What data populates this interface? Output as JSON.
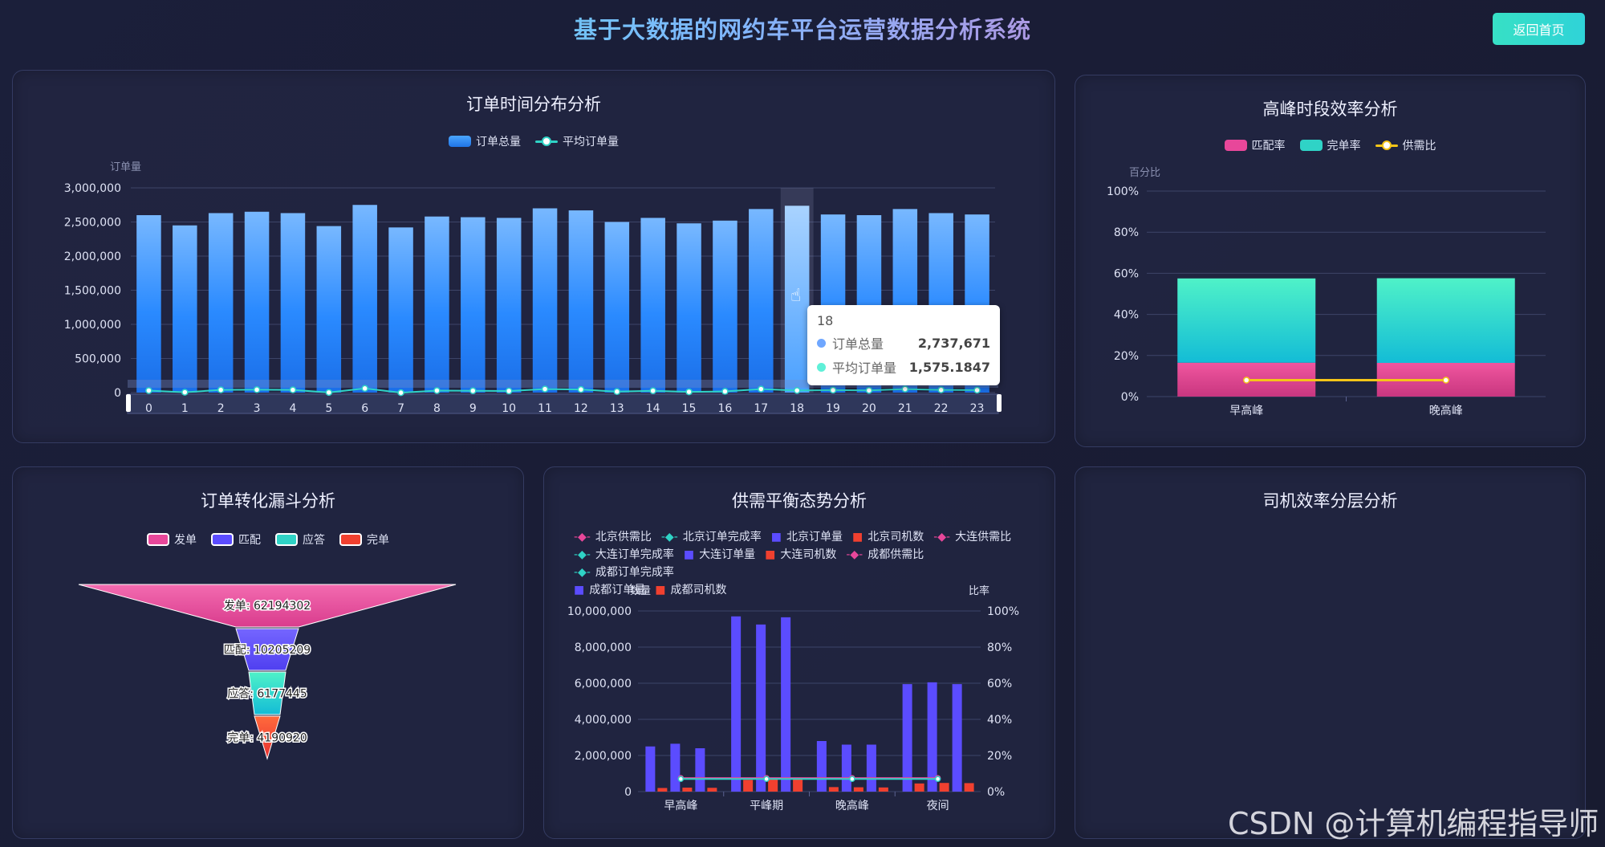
{
  "header": {
    "title": "基于大数据的网约车平台运营数据分析系统",
    "back_label": "返回首页"
  },
  "panels": {
    "time_dist": {
      "title": "订单时间分布分析",
      "legend": [
        "订单总量",
        "平均订单量"
      ],
      "ylabel": "订单量",
      "tooltip": {
        "hour": "18",
        "total_label": "订单总量",
        "total_value": "2,737,671",
        "avg_label": "平均订单量",
        "avg_value": "1,575.1847"
      }
    },
    "peak": {
      "title": "高峰时段效率分析",
      "legend": [
        "匹配率",
        "完单率",
        "供需比"
      ],
      "ylabel": "百分比"
    },
    "funnel": {
      "title": "订单转化漏斗分析",
      "legend": [
        "发单",
        "匹配",
        "应答",
        "完单"
      ],
      "labels": [
        "发单: 62194302",
        "匹配: 10205209",
        "应答: 6177445",
        "完单: 4190920"
      ]
    },
    "supply": {
      "title": "供需平衡态势分析",
      "legend": [
        "北京供需比",
        "北京订单完成率",
        "北京订单量",
        "北京司机数",
        "大连供需比",
        "大连订单完成率",
        "大连订单量",
        "大连司机数",
        "成都供需比",
        "成都订单完成率",
        "成都订单量",
        "成都司机数"
      ],
      "ylabel_left": "数量",
      "ylabel_right": "比率"
    },
    "driver": {
      "title": "司机效率分层分析"
    }
  },
  "watermark": "CSDN @计算机编程指导师",
  "colors": {
    "blue": "#2f8cff",
    "pink": "#e8479a",
    "teal": "#2fd3c6",
    "purple": "#5b4cff",
    "red": "#f0402f",
    "yellow": "#f5c518"
  },
  "chart_data": [
    {
      "type": "bar",
      "title": "订单时间分布分析",
      "ylabel": "订单量",
      "categories": [
        "0",
        "1",
        "2",
        "3",
        "4",
        "5",
        "6",
        "7",
        "8",
        "9",
        "10",
        "11",
        "12",
        "13",
        "14",
        "15",
        "16",
        "17",
        "18",
        "19",
        "20",
        "21",
        "22",
        "23"
      ],
      "series": [
        {
          "name": "订单总量",
          "values": [
            2600000,
            2450000,
            2630000,
            2650000,
            2630000,
            2440000,
            2750000,
            2420000,
            2580000,
            2570000,
            2560000,
            2700000,
            2670000,
            2500000,
            2560000,
            2480000,
            2520000,
            2690000,
            2737671,
            2610000,
            2600000,
            2690000,
            2630000,
            2610000
          ]
        },
        {
          "name": "平均订单量",
          "values": [
            1570,
            1490,
            1600,
            1610,
            1600,
            1480,
            1670,
            1470,
            1570,
            1560,
            1550,
            1640,
            1620,
            1520,
            1560,
            1510,
            1530,
            1640,
            1575.1847,
            1590,
            1580,
            1640,
            1600,
            1590
          ]
        }
      ],
      "yticks": [
        "3,000,000",
        "2,500,000",
        "2,000,000",
        "1,500,000",
        "1,000,000",
        "500,000",
        "0"
      ],
      "ylim": [
        0,
        3000000
      ]
    },
    {
      "type": "bar",
      "title": "高峰时段效率分析",
      "ylabel": "百分比",
      "categories": [
        "早高峰",
        "晚高峰"
      ],
      "series": [
        {
          "name": "匹配率",
          "values": [
            16.5,
            16.4
          ]
        },
        {
          "name": "完单率",
          "values": [
            41,
            41.2
          ]
        },
        {
          "name": "供需比",
          "values": [
            8,
            8
          ]
        }
      ],
      "yticks": [
        "100%",
        "80%",
        "60%",
        "40%",
        "20%",
        "0%"
      ],
      "ylim": [
        0,
        100
      ]
    },
    {
      "type": "bar",
      "title": "订单转化漏斗分析",
      "categories": [
        "发单",
        "匹配",
        "应答",
        "完单"
      ],
      "values": [
        62194302,
        10205209,
        6177445,
        4190920
      ]
    },
    {
      "type": "bar",
      "title": "供需平衡态势分析",
      "categories": [
        "早高峰",
        "平峰期",
        "晚高峰",
        "夜间"
      ],
      "series": [
        {
          "name": "北京订单量",
          "values": [
            2500000,
            9700000,
            2800000,
            5950000
          ]
        },
        {
          "name": "大连订单量",
          "values": [
            2650000,
            9250000,
            2600000,
            6050000
          ]
        },
        {
          "name": "成都订单量",
          "values": [
            2400000,
            9650000,
            2600000,
            5950000
          ]
        },
        {
          "name": "北京司机数",
          "values": [
            200000,
            650000,
            250000,
            450000
          ]
        },
        {
          "name": "大连司机数",
          "values": [
            220000,
            700000,
            240000,
            480000
          ]
        },
        {
          "name": "成都司机数",
          "values": [
            210000,
            680000,
            230000,
            470000
          ]
        },
        {
          "name": "北京供需比",
          "values": [
            7.5,
            7.5,
            7.5,
            7.5
          ]
        },
        {
          "name": "北京订单完成率",
          "values": [
            7.0,
            7.0,
            7.0,
            7.0
          ]
        }
      ],
      "yticks_left": [
        "10,000,000",
        "8,000,000",
        "6,000,000",
        "4,000,000",
        "2,000,000",
        "0"
      ],
      "yticks_right": [
        "100%",
        "80%",
        "60%",
        "40%",
        "20%",
        "0%"
      ],
      "ylim": [
        0,
        10000000
      ]
    }
  ]
}
